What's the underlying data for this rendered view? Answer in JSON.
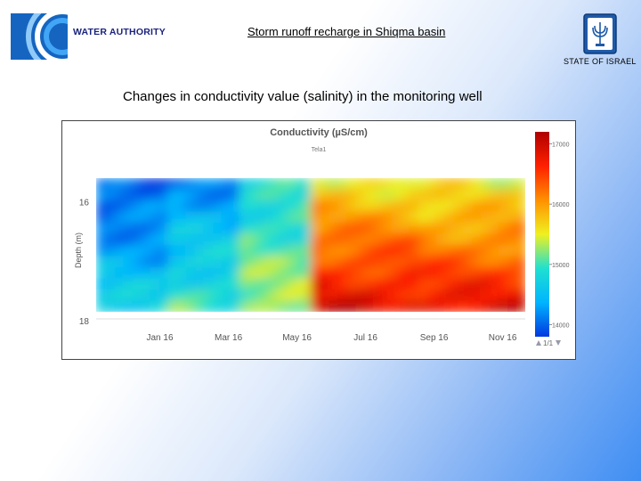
{
  "header": {
    "logo_text": "WATER AUTHORITY",
    "title": "Storm runoff recharge in Shiqma basin",
    "state_label": "STATE OF ISRAEL"
  },
  "subtitle": "Changes in conductivity value (salinity) in the monitoring well",
  "chart_data": {
    "type": "heatmap",
    "title": "Conductivity (µS/cm)",
    "subtitle": "Tela1",
    "ylabel": "Depth (m)",
    "y_ticks": [
      "16",
      "18"
    ],
    "x_ticks": [
      "Jan 16",
      "Mar 16",
      "May 16",
      "Jul 16",
      "Sep 16",
      "Nov 16"
    ],
    "colorbar": {
      "ticks": [
        "17000",
        "16000",
        "15000",
        "14000"
      ],
      "range": [
        13800,
        17200
      ],
      "colors": [
        "#0038e0",
        "#00b4ff",
        "#20e0d0",
        "#f0f020",
        "#ff9000",
        "#ff2000",
        "#b00000"
      ]
    },
    "pager": "1/1",
    "depth_range": [
      15.6,
      18.0
    ],
    "months": 12,
    "grid": "off",
    "period_values": [
      {
        "months": [
          0,
          2
        ],
        "top": 13900,
        "bottom": 14700
      },
      {
        "months": [
          2,
          4
        ],
        "top": 14200,
        "bottom": 15000
      },
      {
        "months": [
          4,
          6
        ],
        "top": 14800,
        "bottom": 15300
      },
      {
        "months": [
          6,
          9
        ],
        "top": 15600,
        "bottom": 16900
      },
      {
        "months": [
          9,
          12
        ],
        "top": 15500,
        "bottom": 16800
      }
    ]
  }
}
